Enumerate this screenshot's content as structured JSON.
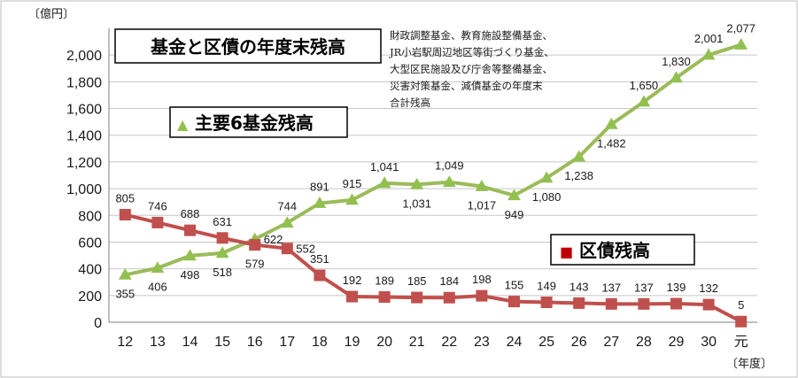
{
  "chart_data": {
    "type": "line",
    "title": "基金と区債の年度末残高",
    "note_lines": [
      "財政調整基金、教育施設整備基金、",
      "JR小岩駅周辺地区等街づくり基金、",
      "大型区民施設及び庁舎等整備基金、",
      "災害対策基金、減債基金の年度末",
      "合計残高"
    ],
    "y_unit": "〔億円〕",
    "x_unit": "〔年度〕",
    "ylim": [
      0,
      2200
    ],
    "yticks": [
      {
        "v": 0,
        "label": "0"
      },
      {
        "v": 200,
        "label": "200"
      },
      {
        "v": 400,
        "label": "400"
      },
      {
        "v": 600,
        "label": "600"
      },
      {
        "v": 800,
        "label": "800"
      },
      {
        "v": 1000,
        "label": "1,000"
      },
      {
        "v": 1200,
        "label": "1,200"
      },
      {
        "v": 1400,
        "label": "1,400"
      },
      {
        "v": 1600,
        "label": "1,600"
      },
      {
        "v": 1800,
        "label": "1,800"
      },
      {
        "v": 2000,
        "label": "2,000"
      }
    ],
    "categories": [
      "12",
      "13",
      "14",
      "15",
      "16",
      "17",
      "18",
      "19",
      "20",
      "21",
      "22",
      "23",
      "24",
      "25",
      "26",
      "27",
      "28",
      "29",
      "30",
      "元"
    ],
    "grid": "horizontal",
    "series": [
      {
        "name": "主要6基金残高",
        "color": "#92c050",
        "line_color": "#9bbb59",
        "marker": "triangle",
        "legend_marker": "▲",
        "values": [
          355,
          406,
          498,
          518,
          622,
          744,
          891,
          915,
          1041,
          1031,
          1049,
          1017,
          949,
          1080,
          1238,
          1482,
          1650,
          1830,
          2001,
          2077
        ],
        "labels": [
          "355",
          "406",
          "498",
          "518",
          "622",
          "744",
          "891",
          "915",
          "1,041",
          "1,031",
          "1,049",
          "1,017",
          "949",
          "1,080",
          "1,238",
          "1,482",
          "1,650",
          "1,830",
          "2,001",
          "2,077"
        ],
        "label_pos": [
          "below",
          "below",
          "below",
          "below",
          "right",
          "above",
          "above",
          "above",
          "above",
          "below",
          "above",
          "below",
          "below",
          "below",
          "below",
          "below",
          "above",
          "above",
          "above",
          "above"
        ]
      },
      {
        "name": "区債残高",
        "color": "#c0504d",
        "line_color": "#c0504d",
        "marker": "square",
        "legend_marker": "■",
        "values": [
          805,
          746,
          688,
          631,
          579,
          552,
          351,
          192,
          189,
          185,
          184,
          198,
          155,
          149,
          143,
          137,
          137,
          139,
          132,
          5
        ],
        "labels": [
          "805",
          "746",
          "688",
          "631",
          "579",
          "552",
          "351",
          "192",
          "189",
          "185",
          "184",
          "198",
          "155",
          "149",
          "143",
          "137",
          "137",
          "139",
          "132",
          "5"
        ],
        "label_pos": [
          "above",
          "above",
          "above",
          "above",
          "below",
          "right",
          "above",
          "above",
          "above",
          "above",
          "above",
          "above",
          "above",
          "above",
          "above",
          "above",
          "above",
          "above",
          "above",
          "above"
        ]
      }
    ]
  }
}
